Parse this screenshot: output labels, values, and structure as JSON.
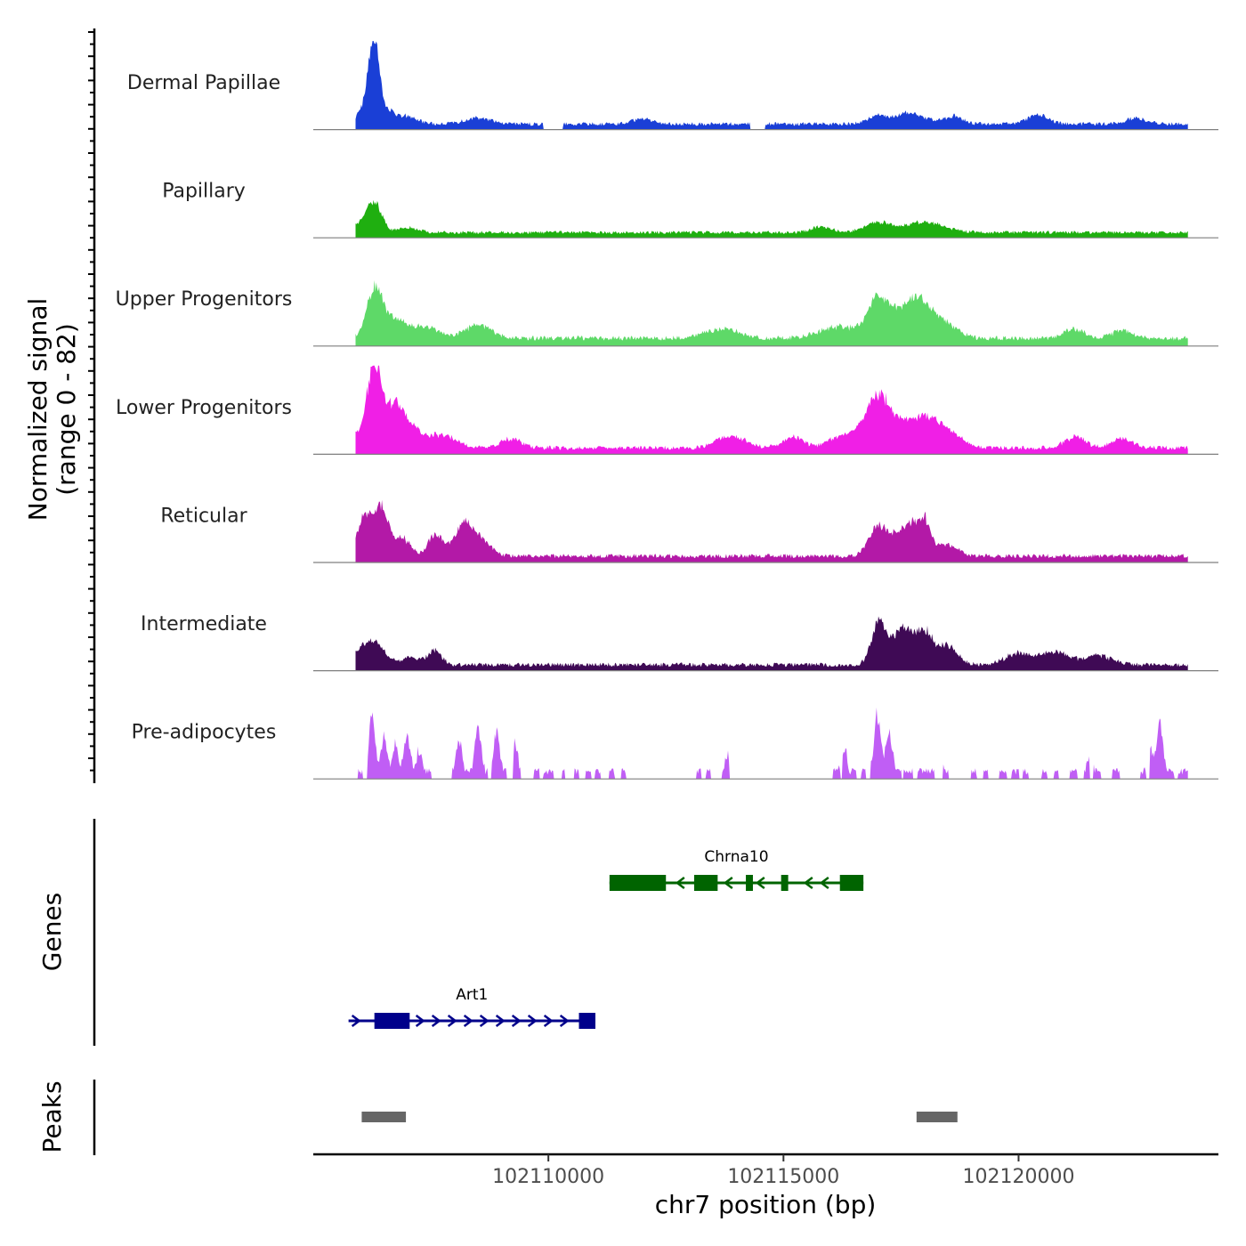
{
  "chart_data": {
    "type": "area",
    "title": "",
    "chromosome": "chr7",
    "xlabel": "chr7 position (bp)",
    "xlim": [
      102105000,
      102124250
    ],
    "xticks": [
      102110000,
      102115000,
      102120000
    ],
    "xtick_labels": [
      "102110000",
      "102115000",
      "102120000"
    ],
    "data_x_range": [
      102105900,
      102123600
    ],
    "signal_axis": {
      "label_line1": "Normalized signal",
      "label_line2": "(range 0 - 82)",
      "range": [
        0,
        82
      ]
    },
    "tracks": [
      {
        "name": "Dermal Papillae",
        "color": "#1a3fd6",
        "peaks": [
          [
            102106300,
            82,
            150
          ],
          [
            102106150,
            20,
            250
          ],
          [
            102106600,
            12,
            200
          ],
          [
            102107000,
            8,
            300
          ],
          [
            102108500,
            6,
            400
          ],
          [
            102112000,
            5,
            300
          ],
          [
            102117000,
            9,
            300
          ],
          [
            102117700,
            12,
            400
          ],
          [
            102118600,
            8,
            300
          ],
          [
            102120400,
            10,
            300
          ],
          [
            102122500,
            6,
            300
          ]
        ],
        "base": 3.5,
        "noise": 3.5,
        "gaps": [
          [
            102109900,
            102110300
          ],
          [
            102114300,
            102114600
          ]
        ]
      },
      {
        "name": "Papillary",
        "color": "#1faf10",
        "peaks": [
          [
            102106300,
            30,
            220
          ],
          [
            102106000,
            8,
            300
          ],
          [
            102107000,
            5,
            300
          ],
          [
            102117000,
            10,
            400
          ],
          [
            102118000,
            11,
            600
          ],
          [
            102115800,
            6,
            300
          ]
        ],
        "base": 3.5,
        "noise": 3.0,
        "gaps": []
      },
      {
        "name": "Upper Progenitors",
        "color": "#5ed968",
        "peaks": [
          [
            102106300,
            50,
            230
          ],
          [
            102106700,
            20,
            350
          ],
          [
            102107400,
            12,
            400
          ],
          [
            102108500,
            14,
            400
          ],
          [
            102113700,
            10,
            500
          ],
          [
            102116200,
            12,
            600
          ],
          [
            102117000,
            38,
            300
          ],
          [
            102117500,
            25,
            400
          ],
          [
            102117900,
            30,
            350
          ],
          [
            102118400,
            16,
            400
          ],
          [
            102121200,
            10,
            300
          ],
          [
            102122200,
            8,
            300
          ]
        ],
        "base": 5,
        "noise": 4.5,
        "gaps": []
      },
      {
        "name": "Lower Progenitors",
        "color": "#f01fe6",
        "peaks": [
          [
            102106300,
            82,
            200
          ],
          [
            102106000,
            15,
            300
          ],
          [
            102106700,
            40,
            300
          ],
          [
            102107100,
            18,
            400
          ],
          [
            102107800,
            12,
            400
          ],
          [
            102109200,
            10,
            300
          ],
          [
            102113700,
            10,
            300
          ],
          [
            102114100,
            8,
            300
          ],
          [
            102115200,
            12,
            300
          ],
          [
            102116200,
            10,
            400
          ],
          [
            102116700,
            14,
            400
          ],
          [
            102117000,
            40,
            300
          ],
          [
            102117400,
            25,
            400
          ],
          [
            102118000,
            28,
            400
          ],
          [
            102118500,
            15,
            400
          ],
          [
            102121200,
            12,
            300
          ],
          [
            102122200,
            10,
            300
          ]
        ],
        "base": 4,
        "noise": 4.0,
        "gaps": []
      },
      {
        "name": "Reticular",
        "color": "#b319a7",
        "peaks": [
          [
            102106100,
            40,
            220
          ],
          [
            102106450,
            48,
            220
          ],
          [
            102106900,
            18,
            250
          ],
          [
            102107600,
            24,
            200
          ],
          [
            102108200,
            32,
            300
          ],
          [
            102108600,
            14,
            300
          ],
          [
            102117000,
            32,
            250
          ],
          [
            102117400,
            20,
            250
          ],
          [
            102117700,
            28,
            200
          ],
          [
            102118000,
            38,
            200
          ],
          [
            102118500,
            12,
            300
          ]
        ],
        "base": 4,
        "noise": 4.0,
        "gaps": []
      },
      {
        "name": "Intermediate",
        "color": "#3f0a55",
        "peaks": [
          [
            102106300,
            24,
            300
          ],
          [
            102106000,
            10,
            200
          ],
          [
            102107100,
            8,
            300
          ],
          [
            102107600,
            14,
            200
          ],
          [
            102117000,
            38,
            200
          ],
          [
            102117300,
            20,
            300
          ],
          [
            102117600,
            30,
            250
          ],
          [
            102118000,
            34,
            250
          ],
          [
            102118500,
            20,
            300
          ],
          [
            102120000,
            12,
            400
          ],
          [
            102120800,
            14,
            400
          ],
          [
            102121700,
            10,
            400
          ]
        ],
        "base": 3.5,
        "noise": 4.0,
        "gaps": []
      },
      {
        "name": "Pre-adipocytes",
        "color": "#c05ef5",
        "peaks": [
          [
            102106250,
            62,
            90
          ],
          [
            102106500,
            38,
            90
          ],
          [
            102106750,
            28,
            90
          ],
          [
            102107000,
            40,
            90
          ],
          [
            102107250,
            24,
            90
          ],
          [
            102108100,
            38,
            90
          ],
          [
            102108500,
            50,
            90
          ],
          [
            102108900,
            42,
            90
          ],
          [
            102109300,
            32,
            80
          ],
          [
            102117000,
            62,
            100
          ],
          [
            102117250,
            42,
            100
          ],
          [
            102116300,
            26,
            80
          ],
          [
            102118300,
            24,
            80
          ],
          [
            102123000,
            60,
            90
          ],
          [
            102122800,
            24,
            80
          ],
          [
            102121500,
            20,
            80
          ],
          [
            102113800,
            20,
            60
          ]
        ],
        "base": 0,
        "noise": 10.0,
        "sparse": true,
        "islands": [
          [
            102105950,
            102106050
          ],
          [
            102106150,
            102107500
          ],
          [
            102107950,
            102108700
          ],
          [
            102108800,
            102109100
          ],
          [
            102109250,
            102109400
          ],
          [
            102109700,
            102109800
          ],
          [
            102109900,
            102110100
          ],
          [
            102110300,
            102110350
          ],
          [
            102110550,
            102110650
          ],
          [
            102110800,
            102110900
          ],
          [
            102111000,
            102111100
          ],
          [
            102111300,
            102111400
          ],
          [
            102111550,
            102111650
          ],
          [
            102113150,
            102113250
          ],
          [
            102113350,
            102113450
          ],
          [
            102113700,
            102113850
          ],
          [
            102116050,
            102116200
          ],
          [
            102116250,
            102116550
          ],
          [
            102116650,
            102116750
          ],
          [
            102116850,
            102117500
          ],
          [
            102117550,
            102117750
          ],
          [
            102117850,
            102118200
          ],
          [
            102118400,
            102118500
          ],
          [
            102119000,
            102119100
          ],
          [
            102119250,
            102119350
          ],
          [
            102119600,
            102119750
          ],
          [
            102119850,
            102120000
          ],
          [
            102120100,
            102120200
          ],
          [
            102120500,
            102120600
          ],
          [
            102120750,
            102120850
          ],
          [
            102121100,
            102121250
          ],
          [
            102121400,
            102121500
          ],
          [
            102121600,
            102121750
          ],
          [
            102122000,
            102122150
          ],
          [
            102122600,
            102122700
          ],
          [
            102122800,
            102123300
          ],
          [
            102123400,
            102123600
          ]
        ]
      }
    ]
  },
  "genes_panel": {
    "ylabel": "Genes",
    "genes": [
      {
        "name": "Chrna10",
        "strand": "-",
        "color": "#006400",
        "start": 102111300,
        "end": 102116700,
        "exons": [
          [
            102111300,
            102112500
          ],
          [
            102113100,
            102113600
          ],
          [
            102114200,
            102114350
          ],
          [
            102114950,
            102115100
          ],
          [
            102116200,
            102116700
          ]
        ]
      },
      {
        "name": "Art1",
        "strand": "+",
        "color": "#00008b",
        "start": 102105750,
        "end": 102111000,
        "exons": [
          [
            102106300,
            102107050
          ],
          [
            102110650,
            102111000
          ]
        ]
      }
    ]
  },
  "peaks_panel": {
    "ylabel": "Peaks",
    "color": "#666666",
    "peaks": [
      [
        102106030,
        102106970
      ],
      [
        102117830,
        102118700
      ]
    ]
  }
}
